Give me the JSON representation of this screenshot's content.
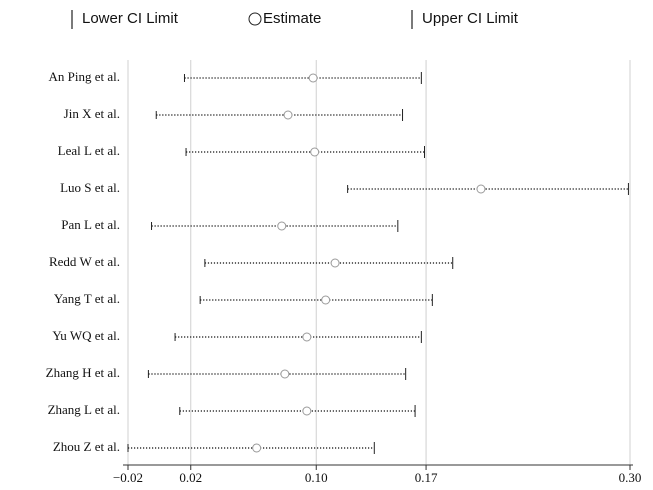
{
  "chart_data": {
    "type": "forest",
    "categories": [
      "An Ping et al.",
      "Jin X et al.",
      "Leal L et al.",
      "Luo S et al.",
      "Pan L et al.",
      "Redd W et al.",
      "Yang T et al.",
      "Yu WQ et al.",
      "Zhang H et al.",
      "Zhang L et al.",
      "Zhou Z et al."
    ],
    "series": [
      {
        "name": "Lower CI Limit",
        "color": "#222222",
        "values": [
          0.016,
          -0.002,
          0.017,
          0.12,
          -0.005,
          0.029,
          0.026,
          0.01,
          -0.007,
          0.013,
          -0.02
        ]
      },
      {
        "name": "Estimate",
        "color": "#999999",
        "values": [
          0.098,
          0.082,
          0.099,
          0.205,
          0.078,
          0.112,
          0.106,
          0.094,
          0.08,
          0.094,
          0.062
        ]
      },
      {
        "name": "Upper CI Limit",
        "color": "#222222",
        "values": [
          0.167,
          0.155,
          0.169,
          0.299,
          0.152,
          0.187,
          0.174,
          0.167,
          0.157,
          0.163,
          0.137
        ]
      }
    ],
    "xlim": [
      -0.02,
      0.3
    ],
    "xticks": [
      {
        "value": -0.02,
        "label": "−0.02"
      },
      {
        "value": 0.02,
        "label": "0.02"
      },
      {
        "value": 0.1,
        "label": "0.10"
      },
      {
        "value": 0.17,
        "label": "0.17"
      },
      {
        "value": 0.3,
        "label": "0.30"
      }
    ],
    "grid": true
  }
}
